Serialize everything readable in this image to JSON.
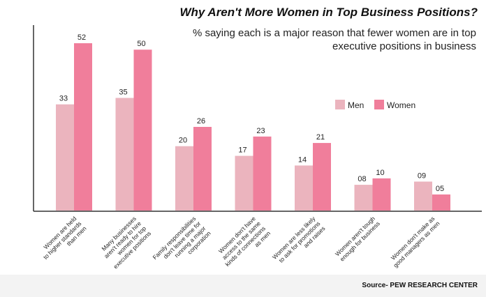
{
  "colors": {
    "men": "#ebb4be",
    "women": "#f07e9b",
    "axis": "#333333"
  },
  "chart_data": {
    "type": "bar",
    "title": "Why Aren't More Women in Top Business Positions?",
    "subtitle": "% saying each is a major reason that fewer women are in top executive positions in business",
    "categories": [
      [
        "Women are held",
        "to higher standards",
        "than men"
      ],
      [
        "Many businesses",
        "aren't ready to hire",
        "women for top",
        "executive positions"
      ],
      [
        "Family responsibilities",
        "don't leave time for",
        "running a major",
        "corporation"
      ],
      [
        "Women don't have",
        "access to the same",
        "kinds of connections",
        "as men"
      ],
      [
        "Women are less likely",
        "to ask for promotions",
        "and raises"
      ],
      [
        "Women aren't tough",
        "enough for business"
      ],
      [
        "Women don't make as",
        "good managers as men"
      ]
    ],
    "series": [
      {
        "name": "Men",
        "values": [
          33,
          35,
          20,
          17,
          14,
          8,
          9
        ],
        "labels": [
          "33",
          "35",
          "20",
          "17",
          "14",
          "08",
          "09"
        ]
      },
      {
        "name": "Women",
        "values": [
          52,
          50,
          26,
          23,
          21,
          10,
          5
        ],
        "labels": [
          "52",
          "50",
          "26",
          "23",
          "21",
          "10",
          "05"
        ]
      }
    ],
    "ylim": [
      0,
      60
    ],
    "xlabel": "",
    "ylabel": "",
    "grid": false,
    "legend": "right"
  },
  "source": "Source- PEW RESEARCH CENTER"
}
